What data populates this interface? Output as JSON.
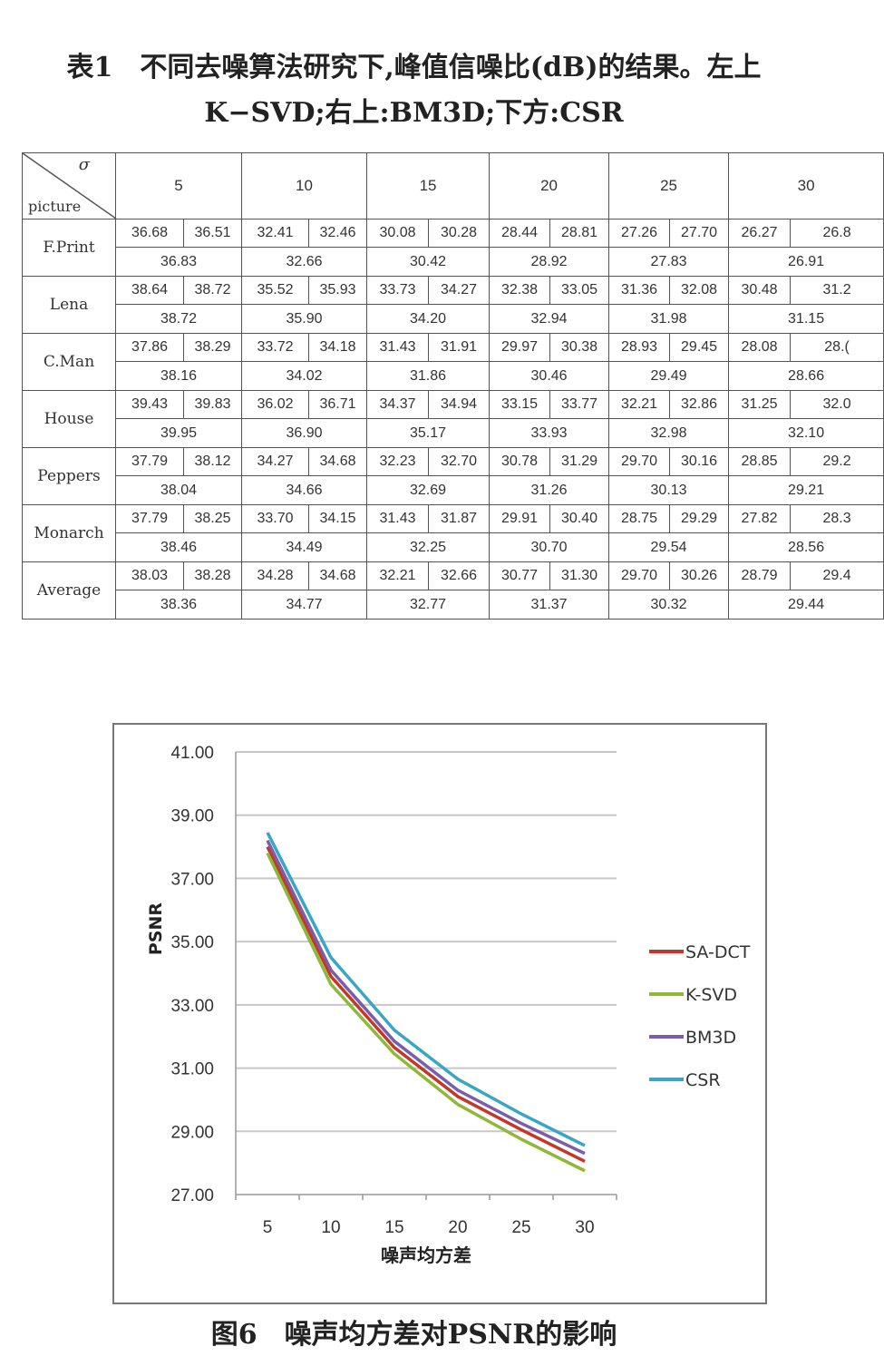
{
  "table": {
    "title_line1": "表1　不同去噪算法研究下,峰值信噪比(dB)的结果。左上",
    "title_line2": "K−SVD;右上:BM3D;下方:CSR",
    "corner_sigma": "σ",
    "corner_picture": "picture",
    "sigmas": [
      "5",
      "10",
      "15",
      "20",
      "25",
      "30"
    ],
    "rows": [
      {
        "name": "F.Print",
        "top": [
          [
            "36.68",
            "36.51"
          ],
          [
            "32.41",
            "32.46"
          ],
          [
            "30.08",
            "30.28"
          ],
          [
            "28.44",
            "28.81"
          ],
          [
            "27.26",
            "27.70"
          ],
          [
            "26.27",
            "26.8"
          ]
        ],
        "bottom": [
          "36.83",
          "32.66",
          "30.42",
          "28.92",
          "27.83",
          "26.91"
        ]
      },
      {
        "name": "Lena",
        "top": [
          [
            "38.64",
            "38.72"
          ],
          [
            "35.52",
            "35.93"
          ],
          [
            "33.73",
            "34.27"
          ],
          [
            "32.38",
            "33.05"
          ],
          [
            "31.36",
            "32.08"
          ],
          [
            "30.48",
            "31.2"
          ]
        ],
        "bottom": [
          "38.72",
          "35.90",
          "34.20",
          "32.94",
          "31.98",
          "31.15"
        ]
      },
      {
        "name": "C.Man",
        "top": [
          [
            "37.86",
            "38.29"
          ],
          [
            "33.72",
            "34.18"
          ],
          [
            "31.43",
            "31.91"
          ],
          [
            "29.97",
            "30.38"
          ],
          [
            "28.93",
            "29.45"
          ],
          [
            "28.08",
            "28.("
          ]
        ],
        "bottom": [
          "38.16",
          "34.02",
          "31.86",
          "30.46",
          "29.49",
          "28.66"
        ]
      },
      {
        "name": "House",
        "top": [
          [
            "39.43",
            "39.83"
          ],
          [
            "36.02",
            "36.71"
          ],
          [
            "34.37",
            "34.94"
          ],
          [
            "33.15",
            "33.77"
          ],
          [
            "32.21",
            "32.86"
          ],
          [
            "31.25",
            "32.0"
          ]
        ],
        "bottom": [
          "39.95",
          "36.90",
          "35.17",
          "33.93",
          "32.98",
          "32.10"
        ]
      },
      {
        "name": "Peppers",
        "top": [
          [
            "37.79",
            "38.12"
          ],
          [
            "34.27",
            "34.68"
          ],
          [
            "32.23",
            "32.70"
          ],
          [
            "30.78",
            "31.29"
          ],
          [
            "29.70",
            "30.16"
          ],
          [
            "28.85",
            "29.2"
          ]
        ],
        "bottom": [
          "38.04",
          "34.66",
          "32.69",
          "31.26",
          "30.13",
          "29.21"
        ]
      },
      {
        "name": "Monarch",
        "top": [
          [
            "37.79",
            "38.25"
          ],
          [
            "33.70",
            "34.15"
          ],
          [
            "31.43",
            "31.87"
          ],
          [
            "29.91",
            "30.40"
          ],
          [
            "28.75",
            "29.29"
          ],
          [
            "27.82",
            "28.3"
          ]
        ],
        "bottom": [
          "38.46",
          "34.49",
          "32.25",
          "30.70",
          "29.54",
          "28.56"
        ]
      },
      {
        "name": "Average",
        "top": [
          [
            "38.03",
            "38.28"
          ],
          [
            "34.28",
            "34.68"
          ],
          [
            "32.21",
            "32.66"
          ],
          [
            "30.77",
            "31.30"
          ],
          [
            "29.70",
            "30.26"
          ],
          [
            "28.79",
            "29.4"
          ]
        ],
        "bottom": [
          "38.36",
          "34.77",
          "32.77",
          "31.37",
          "30.32",
          "29.44"
        ]
      }
    ]
  },
  "chart_data": {
    "type": "line",
    "title": "",
    "xlabel": "噪声均方差",
    "ylabel": "PSNR",
    "categories": [
      "5",
      "10",
      "15",
      "20",
      "25",
      "30"
    ],
    "ylim": [
      27,
      41
    ],
    "yticks": [
      "41.00",
      "39.00",
      "37.00",
      "35.00",
      "33.00",
      "31.00",
      "29.00",
      "27.00"
    ],
    "grid": true,
    "legend_position": "right",
    "series": [
      {
        "name": "SA-DCT",
        "color": "#c0392b",
        "values": [
          38.0,
          33.9,
          31.65,
          30.1,
          29.05,
          28.05
        ]
      },
      {
        "name": "K-SVD",
        "color": "#8fb83a",
        "values": [
          37.8,
          33.65,
          31.45,
          29.85,
          28.75,
          27.75
        ]
      },
      {
        "name": "BM3D",
        "color": "#7b5ea7",
        "values": [
          38.2,
          34.1,
          31.85,
          30.3,
          29.25,
          28.3
        ]
      },
      {
        "name": "CSR",
        "color": "#3aa6c2",
        "values": [
          38.45,
          34.5,
          32.2,
          30.65,
          29.55,
          28.55
        ]
      }
    ]
  },
  "figure": {
    "caption": "图6　噪声均方差对PSNR的影响"
  }
}
